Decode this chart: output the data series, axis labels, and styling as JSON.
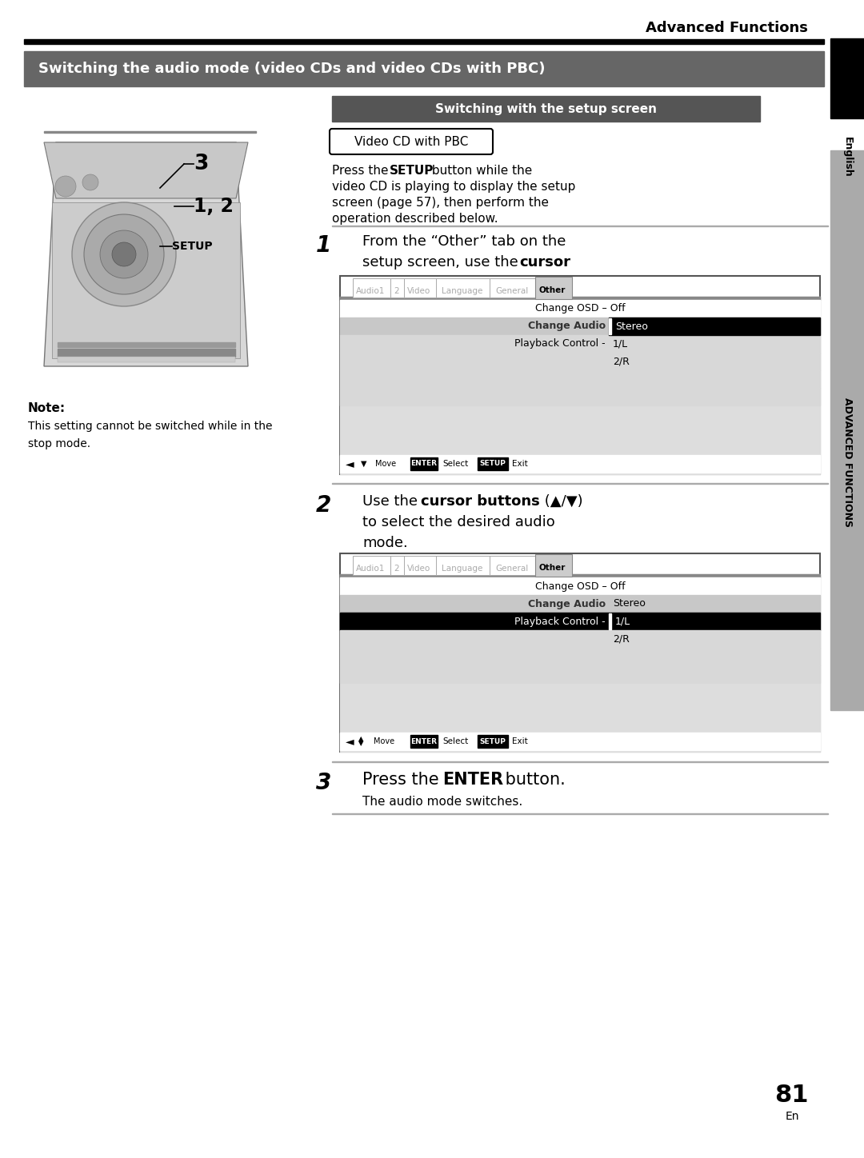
{
  "page_bg": "#ffffff",
  "header_text": "Advanced Functions",
  "section_title": "Switching the audio mode (video CDs and video CDs with PBC)",
  "section_title_bg": "#666666",
  "sidebar_label": "English",
  "sidebar_label2": "ADVANCED FUNCTIONS",
  "switching_label": "Switching with the setup screen",
  "pbc_label": "Video CD with PBC",
  "step1_num": "1",
  "step2_num": "2",
  "step3_num": "3",
  "step3_sub": "The audio mode switches.",
  "note_title": "Note:",
  "note_text_1": "This setting cannot be switched while in the",
  "note_text_2": "stop mode.",
  "page_num": "81",
  "page_en": "En",
  "tab_labels": [
    "Audio1",
    "2",
    "Video",
    "Language",
    "General",
    "Other"
  ],
  "tab_widths": [
    45,
    15,
    38,
    65,
    55,
    42
  ],
  "menu_row1": "Change OSD - Off",
  "menu_row2_label": "Change Audio",
  "menu_row2_value": "Stereo",
  "menu_row3_label": "Playback Control -",
  "menu_row3_value1": "1/L",
  "menu_row3_value2": "2/R",
  "section_title_color": "#666666",
  "black": "#000000",
  "white": "#ffffff",
  "gray_tab_bg": "#cccccc",
  "gray_content_bg": "#dddddd",
  "gray_row2_bg": "#c0c0c0",
  "gray_row3_bg": "#d8d8d8",
  "dark_gray_line": "#888888",
  "sidebar_gray": "#aaaaaa"
}
